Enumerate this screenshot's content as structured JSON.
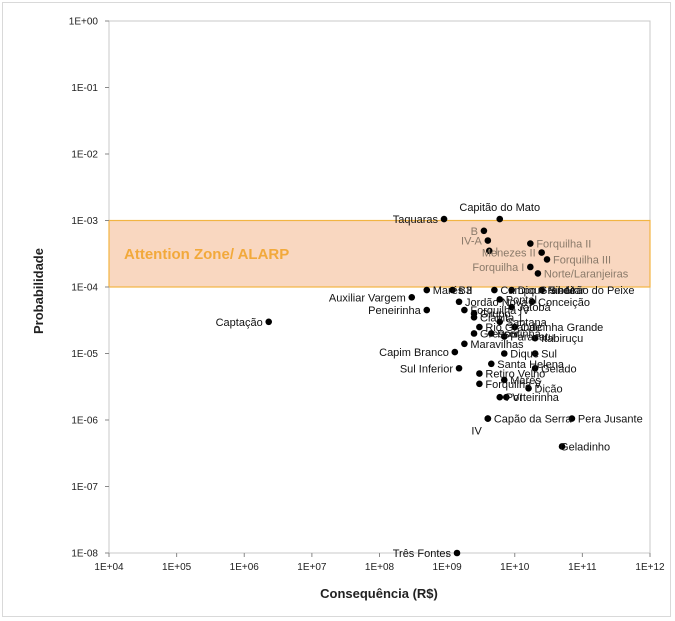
{
  "chart_data": {
    "type": "scatter",
    "xlabel": "Consequência (R$)",
    "ylabel": "Probabilidade",
    "x_scale": "log",
    "y_scale": "log",
    "xlim": [
      10000,
      1000000000000
    ],
    "ylim": [
      1e-08,
      1
    ],
    "x_ticks": [
      "1E+04",
      "1E+05",
      "1E+06",
      "1E+07",
      "1E+08",
      "1E+09",
      "1E+10",
      "1E+11",
      "1E+12"
    ],
    "y_ticks": [
      "1E+00",
      "1E-01",
      "1E-02",
      "1E-03",
      "1E-04",
      "1E-05",
      "1E-06",
      "1E-07",
      "1E-08"
    ],
    "grid": false,
    "colors": {
      "zone_fill": "#f9d7c0",
      "zone_border": "#f2b443",
      "zone_label": "#f2a93b",
      "point": "#000000",
      "label_in_zone": "#8a7a6a",
      "label": "#111111"
    },
    "zone": {
      "label": "Attention Zone/ ALARP",
      "y_range": [
        0.0001,
        0.001
      ]
    },
    "points": [
      {
        "name": "Captação",
        "x": 2300000,
        "y": 3e-05
      },
      {
        "name": "Capitão do Mato",
        "x": 6000000000,
        "y": 0.00105
      },
      {
        "name": "Taquaras",
        "x": 900000000,
        "y": 0.00105
      },
      {
        "name": "B",
        "x": 3500000000,
        "y": 0.0007
      },
      {
        "name": "IV-A",
        "x": 4000000000,
        "y": 0.0005
      },
      {
        "name": "I",
        "x": 4200000000,
        "y": 0.00035
      },
      {
        "name": "Forquilha II",
        "x": 17000000000,
        "y": 0.00045
      },
      {
        "name": "Menezes II",
        "x": 25000000000,
        "y": 0.00033
      },
      {
        "name": "Forquilha I",
        "x": 17000000000,
        "y": 0.0002
      },
      {
        "name": "Forquilha III",
        "x": 30000000000,
        "y": 0.00026
      },
      {
        "name": "Norte/Laranjeiras",
        "x": 22000000000,
        "y": 0.00016
      },
      {
        "name": "Marés II",
        "x": 500000000,
        "y": 9e-05
      },
      {
        "name": "B3",
        "x": 1200000000,
        "y": 9e-05
      },
      {
        "name": "Campo Grande",
        "x": 5000000000,
        "y": 9e-05
      },
      {
        "name": "Dique 5 - Mar",
        "x": 9000000000,
        "y": 9e-05
      },
      {
        "name": "Ribeirão do Peixe",
        "x": 25000000000,
        "y": 9e-05
      },
      {
        "name": "Conceição",
        "x": 18000000000,
        "y": 6e-05
      },
      {
        "name": "Auxiliar Vargem",
        "x": 300000000,
        "y": 7e-05
      },
      {
        "name": "Jordão Nova",
        "x": 1500000000,
        "y": 6e-05
      },
      {
        "name": "Pontal",
        "x": 6000000000,
        "y": 6.5e-05
      },
      {
        "name": "Jatobá",
        "x": 9000000000,
        "y": 5e-05
      },
      {
        "name": "Peneirinha",
        "x": 500000000,
        "y": 4.5e-05
      },
      {
        "name": "Forquilha IV",
        "x": 1800000000,
        "y": 4.5e-05
      },
      {
        "name": "Grupo",
        "x": 2500000000,
        "y": 4e-05
      },
      {
        "name": "Cianita 1",
        "x": 2500000000,
        "y": 3.5e-05
      },
      {
        "name": "Santana",
        "x": 6000000000,
        "y": 3e-05
      },
      {
        "name": "Rio Grande",
        "x": 3000000000,
        "y": 2.5e-05
      },
      {
        "name": "Calcinha Grande",
        "x": 10000000000,
        "y": 2.5e-05
      },
      {
        "name": "Gressor",
        "x": 2500000000,
        "y": 2e-05
      },
      {
        "name": "Pontinha",
        "x": 4500000000,
        "y": 2e-05
      },
      {
        "name": "Paracatu",
        "x": 7000000000,
        "y": 1.8e-05
      },
      {
        "name": "Itabiruçu",
        "x": 20000000000,
        "y": 1.7e-05
      },
      {
        "name": "Maravilhas",
        "x": 1800000000,
        "y": 1.4e-05
      },
      {
        "name": "Capim Branco",
        "x": 1300000000,
        "y": 1.05e-05
      },
      {
        "name": "Dique",
        "x": 7000000000,
        "y": 1e-05
      },
      {
        "name": "Sul",
        "x": 20000000000,
        "y": 1e-05
      },
      {
        "name": "Santa Helena",
        "x": 4500000000,
        "y": 7e-06
      },
      {
        "name": "Sul Inferior",
        "x": 1500000000,
        "y": 6e-06
      },
      {
        "name": "Retiro Velho",
        "x": 3000000000,
        "y": 5e-06
      },
      {
        "name": "Gelado",
        "x": 20000000000,
        "y": 6e-06
      },
      {
        "name": "Forquilha V",
        "x": 3000000000,
        "y": 3.5e-06
      },
      {
        "name": "Marés",
        "x": 7000000000,
        "y": 4e-06
      },
      {
        "name": "Dicão",
        "x": 16000000000,
        "y": 3e-06
      },
      {
        "name": "Porteirinha",
        "x": 6000000000,
        "y": 2.2e-06
      },
      {
        "name": "VI",
        "x": 7500000000,
        "y": 2.2e-06
      },
      {
        "name": "Capão da Serra",
        "x": 4000000000,
        "y": 1.05e-06
      },
      {
        "name": "Pera Jusante",
        "x": 70000000000,
        "y": 1.05e-06
      },
      {
        "name": "IV",
        "x": 4000000000,
        "y": 1.05e-06
      },
      {
        "name": "Geladinho",
        "x": 50000000000,
        "y": 4e-07
      },
      {
        "name": "Três Fontes",
        "x": 1400000000,
        "y": 1e-08
      }
    ]
  }
}
